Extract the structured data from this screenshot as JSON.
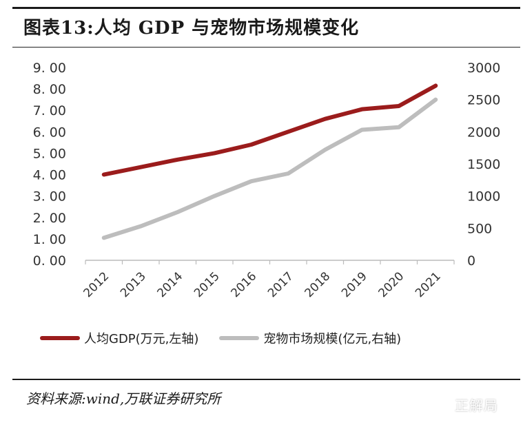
{
  "title": "图表13:人均 GDP 与宠物市场规模变化",
  "source": "资料来源:wind,万联证券研究所",
  "watermark": "正解局",
  "legend": {
    "gdp_label": "人均GDP(万元,左轴)",
    "market_label": "宠物市场规模(亿元,右轴)"
  },
  "colors": {
    "gdp": "#9b1c1c",
    "market": "#bdbdbd",
    "axis": "#bbbbbb"
  },
  "chart_data": {
    "type": "line",
    "categories": [
      "2012",
      "2013",
      "2014",
      "2015",
      "2016",
      "2017",
      "2018",
      "2019",
      "2020",
      "2021"
    ],
    "y_left": {
      "ylim": [
        0,
        9
      ],
      "ticks": [
        "0. 00",
        "1. 00",
        "2. 00",
        "3. 00",
        "4. 00",
        "5. 00",
        "6. 00",
        "7. 00",
        "8. 00",
        "9. 00"
      ]
    },
    "y_right": {
      "ylim": [
        0,
        3000
      ],
      "ticks": [
        "0",
        "500",
        "1000",
        "1500",
        "2000",
        "2500",
        "3000"
      ]
    },
    "series": [
      {
        "name": "人均GDP(万元,左轴)",
        "axis": "left",
        "values": [
          4.0,
          4.35,
          4.7,
          5.0,
          5.4,
          6.0,
          6.6,
          7.05,
          7.2,
          8.15
        ]
      },
      {
        "name": "宠物市场规模(亿元,右轴)",
        "axis": "right",
        "values": [
          350,
          530,
          750,
          1000,
          1230,
          1350,
          1720,
          2030,
          2070,
          2500
        ]
      }
    ]
  }
}
